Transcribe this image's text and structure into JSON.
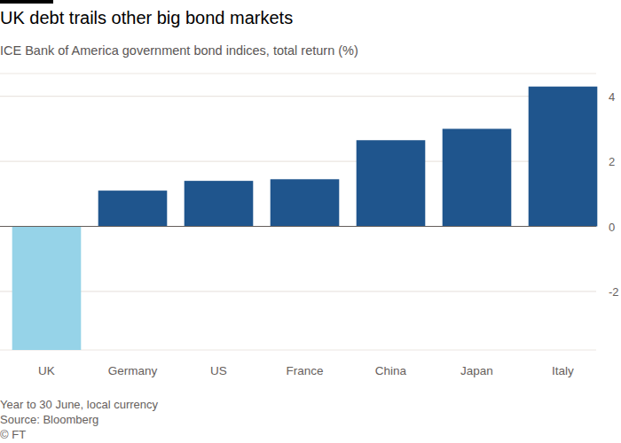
{
  "chart_data": {
    "type": "bar",
    "title": "UK debt trails other big bond markets",
    "subtitle": "ICE Bank of America government bond indices, total return (%)",
    "categories": [
      "UK",
      "Germany",
      "US",
      "France",
      "China",
      "Japan",
      "Italy"
    ],
    "values": [
      -3.8,
      1.1,
      1.4,
      1.45,
      2.65,
      3.0,
      4.3
    ],
    "colors": [
      "#96d3e8",
      "#1f558d",
      "#1f558d",
      "#1f558d",
      "#1f558d",
      "#1f558d",
      "#1f558d"
    ],
    "ylim": [
      -3.8,
      4.7
    ],
    "yticks": [
      -2,
      0,
      2,
      4
    ],
    "grid": true,
    "notes": [
      "Year to 30 June, local currency",
      "Source: Bloomberg",
      "© FT"
    ]
  }
}
